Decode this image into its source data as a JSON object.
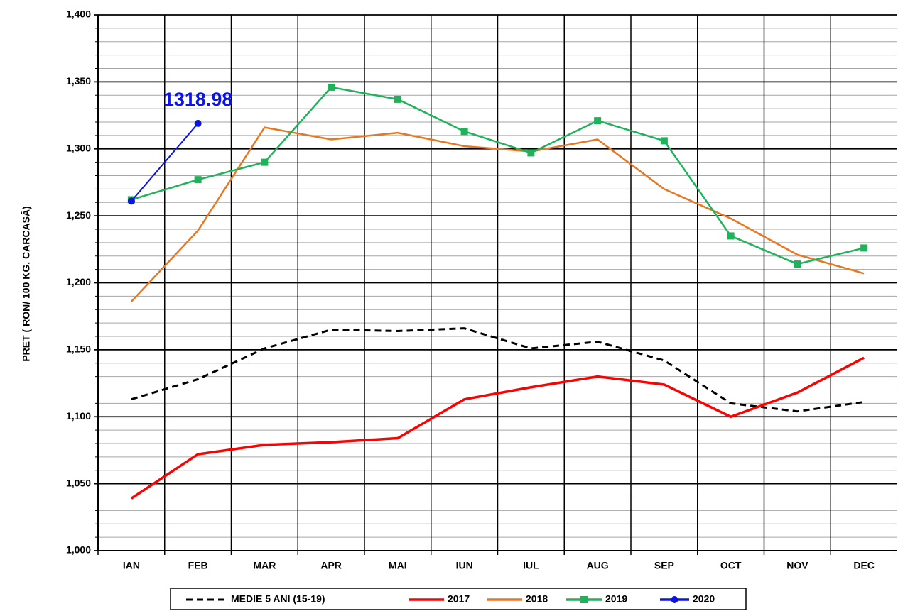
{
  "chart_data": {
    "type": "line",
    "y_label": "PRET ( RON/ 100 KG. CARCASĂ)",
    "categories": [
      "IAN",
      "FEB",
      "MAR",
      "APR",
      "MAI",
      "IUN",
      "IUL",
      "AUG",
      "SEP",
      "OCT",
      "NOV",
      "DEC"
    ],
    "series": [
      {
        "name": "MEDIE 5 ANI (15-19)",
        "color": "#000000",
        "style": "dashed",
        "marker": "none",
        "values": [
          1113,
          1128,
          1151,
          1165,
          1164,
          1166,
          1151,
          1156,
          1142,
          1110,
          1104,
          1111
        ]
      },
      {
        "name": "2017",
        "color": "#ff0000",
        "style": "solid",
        "marker": "none",
        "values": [
          1039,
          1072,
          1079,
          1081,
          1084,
          1113,
          1122,
          1130,
          1124,
          1100,
          1118,
          1144
        ]
      },
      {
        "name": "2018",
        "color": "#e87722",
        "style": "solid",
        "marker": "none",
        "values": [
          1186,
          1239,
          1316,
          1307,
          1312,
          1302,
          1298,
          1307,
          1270,
          1248,
          1221,
          1207
        ]
      },
      {
        "name": "2019",
        "color": "#1fb25a",
        "style": "solid",
        "marker": "square",
        "values": [
          1262,
          1277,
          1290,
          1346,
          1337,
          1313,
          1297,
          1321,
          1306,
          1235,
          1214,
          1226
        ]
      },
      {
        "name": "2020",
        "color": "#0a14e6",
        "style": "solid",
        "marker": "circle",
        "values": [
          1261,
          1318.98,
          null,
          null,
          null,
          null,
          null,
          null,
          null,
          null,
          null,
          null
        ]
      }
    ],
    "annotation_point": {
      "series": 4,
      "index": 1
    },
    "ylim": [
      1000,
      1400
    ],
    "yticks": [
      {
        "value": 1000,
        "label": "1,000"
      },
      {
        "value": 1050,
        "label": "1,050"
      },
      {
        "value": 1100,
        "label": "1,100"
      },
      {
        "value": 1150,
        "label": "1,150"
      },
      {
        "value": 1200,
        "label": "1,200"
      },
      {
        "value": 1250,
        "label": "1,250"
      },
      {
        "value": 1300,
        "label": "1,300"
      },
      {
        "value": 1350,
        "label": "1,350"
      },
      {
        "value": 1400,
        "label": "1,400"
      }
    ],
    "grid": true,
    "legend": "bottom"
  }
}
